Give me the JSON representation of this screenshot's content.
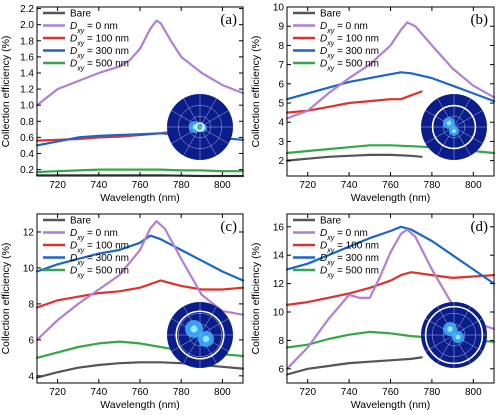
{
  "colors": {
    "Bare": "#555555",
    "D0": "#b07fd8",
    "D100": "#e0322a",
    "D300": "#1a66c9",
    "D500": "#33a844"
  },
  "legend": [
    {
      "key": "Bare",
      "text": "Bare",
      "sub": "",
      "rest": ""
    },
    {
      "key": "D0",
      "text": "D",
      "sub": "xy",
      "rest": " = 0 nm"
    },
    {
      "key": "D100",
      "text": "D",
      "sub": "xy",
      "rest": " = 100 nm"
    },
    {
      "key": "D300",
      "text": "D",
      "sub": "xy",
      "rest": " = 300 nm"
    },
    {
      "key": "D500",
      "text": "D",
      "sub": "xy",
      "rest": " = 500 nm"
    }
  ],
  "chart_data": [
    {
      "type": "line",
      "panel": "(a)",
      "xlabel": "Wavelength (nm)",
      "ylabel": "Collection efficiency (%)",
      "xlim": [
        710,
        810
      ],
      "ylim": [
        0.12,
        2.22
      ],
      "xticks": [
        720,
        740,
        760,
        780,
        800
      ],
      "yticks": [
        0.2,
        0.4,
        0.6,
        0.8,
        1.0,
        1.2,
        1.4,
        1.6,
        1.8,
        2.0,
        2.2
      ],
      "ytick_labels": [
        "0.2",
        "0.4",
        "0.6",
        "0.8",
        "1.0",
        "1.2",
        "1.4",
        "1.6",
        "1.8",
        "2.0",
        "2.2"
      ],
      "series": [
        {
          "name": "Bare",
          "x": [
            710,
            730,
            750,
            770,
            790,
            810
          ],
          "y": [
            0.13,
            0.13,
            0.13,
            0.13,
            0.12,
            0.12
          ]
        },
        {
          "name": "Dxy = 0 nm",
          "x": [
            710,
            715,
            720,
            730,
            740,
            750,
            755,
            760,
            765,
            768,
            770,
            775,
            780,
            790,
            800,
            810
          ],
          "y": [
            1.0,
            1.1,
            1.2,
            1.3,
            1.4,
            1.48,
            1.56,
            1.7,
            1.95,
            2.05,
            2.02,
            1.8,
            1.6,
            1.4,
            1.25,
            1.15
          ]
        },
        {
          "name": "Dxy = 100 nm",
          "x": [
            710,
            720,
            730,
            740,
            750,
            760,
            770,
            773
          ],
          "y": [
            0.56,
            0.57,
            0.58,
            0.6,
            0.61,
            0.63,
            0.65,
            0.66
          ]
        },
        {
          "name": "Dxy = 300 nm",
          "x": [
            710,
            720,
            730,
            740,
            750,
            760,
            770,
            780,
            790,
            800,
            810
          ],
          "y": [
            0.5,
            0.55,
            0.6,
            0.62,
            0.63,
            0.64,
            0.65,
            0.63,
            0.61,
            0.59,
            0.57
          ]
        },
        {
          "name": "Dxy = 500 nm",
          "x": [
            710,
            720,
            730,
            740,
            750,
            760,
            770,
            780,
            790,
            800,
            810
          ],
          "y": [
            0.17,
            0.18,
            0.19,
            0.2,
            0.2,
            0.2,
            0.2,
            0.19,
            0.19,
            0.18,
            0.18
          ]
        }
      ]
    },
    {
      "type": "line",
      "panel": "(b)",
      "xlabel": "Wavelength (nm)",
      "ylabel": "Collection efficiency (%)",
      "xlim": [
        710,
        810
      ],
      "ylim": [
        1.2,
        10.0
      ],
      "xticks": [
        720,
        740,
        760,
        780,
        800
      ],
      "yticks": [
        2,
        3,
        4,
        5,
        6,
        7,
        8,
        9,
        10
      ],
      "ytick_labels": [
        "2",
        "3",
        "4",
        "5",
        "6",
        "7",
        "8",
        "9",
        "10"
      ],
      "series": [
        {
          "name": "Bare",
          "x": [
            710,
            720,
            730,
            740,
            750,
            760,
            770,
            775
          ],
          "y": [
            2.0,
            2.1,
            2.2,
            2.25,
            2.3,
            2.3,
            2.25,
            2.2
          ]
        },
        {
          "name": "Dxy = 0 nm",
          "x": [
            710,
            720,
            730,
            740,
            750,
            760,
            765,
            768,
            772,
            780,
            790,
            800,
            810
          ],
          "y": [
            4.2,
            4.6,
            5.5,
            6.3,
            7.0,
            8.0,
            8.8,
            9.2,
            9.0,
            8.0,
            6.8,
            5.9,
            5.3
          ]
        },
        {
          "name": "Dxy = 100 nm",
          "x": [
            710,
            720,
            730,
            740,
            750,
            760,
            765,
            770,
            775
          ],
          "y": [
            4.5,
            4.6,
            4.8,
            5.0,
            5.1,
            5.2,
            5.2,
            5.4,
            5.6
          ]
        },
        {
          "name": "Dxy = 300 nm",
          "x": [
            710,
            720,
            730,
            740,
            750,
            760,
            765,
            770,
            780,
            790,
            800,
            810
          ],
          "y": [
            5.2,
            5.5,
            5.8,
            6.1,
            6.3,
            6.5,
            6.6,
            6.55,
            6.3,
            5.9,
            5.5,
            5.1
          ]
        },
        {
          "name": "Dxy = 500 nm",
          "x": [
            710,
            720,
            730,
            740,
            750,
            760,
            770,
            780,
            790,
            800,
            810
          ],
          "y": [
            2.4,
            2.5,
            2.6,
            2.7,
            2.8,
            2.8,
            2.75,
            2.7,
            2.6,
            2.5,
            2.4
          ]
        }
      ]
    },
    {
      "type": "line",
      "panel": "(c)",
      "xlabel": "Wavelength (nm)",
      "ylabel": "Collection efficiency (%)",
      "xlim": [
        710,
        810
      ],
      "ylim": [
        3.6,
        13.0
      ],
      "xticks": [
        720,
        740,
        760,
        780,
        800
      ],
      "yticks": [
        4,
        6,
        8,
        10,
        12
      ],
      "ytick_labels": [
        "4",
        "6",
        "8",
        "10",
        "12"
      ],
      "series": [
        {
          "name": "Bare",
          "x": [
            710,
            720,
            730,
            740,
            750,
            760,
            770,
            780,
            790,
            800,
            810
          ],
          "y": [
            3.9,
            4.2,
            4.45,
            4.6,
            4.7,
            4.75,
            4.75,
            4.7,
            4.6,
            4.5,
            4.4
          ]
        },
        {
          "name": "Dxy = 0 nm",
          "x": [
            710,
            720,
            730,
            740,
            750,
            760,
            765,
            768,
            772,
            780,
            790,
            800,
            810
          ],
          "y": [
            6.0,
            7.1,
            8.0,
            8.8,
            9.6,
            11.0,
            12.2,
            12.6,
            12.2,
            10.5,
            8.5,
            7.6,
            7.4
          ]
        },
        {
          "name": "Dxy = 100 nm",
          "x": [
            710,
            720,
            730,
            740,
            750,
            760,
            770,
            780,
            790,
            800,
            810
          ],
          "y": [
            7.8,
            8.2,
            8.4,
            8.6,
            8.7,
            8.9,
            9.3,
            9.0,
            8.8,
            8.8,
            8.9
          ]
        },
        {
          "name": "Dxy = 300 nm",
          "x": [
            710,
            720,
            730,
            740,
            750,
            760,
            765,
            770,
            780,
            790,
            800,
            810
          ],
          "y": [
            9.8,
            10.2,
            10.5,
            10.8,
            11.0,
            11.4,
            11.8,
            11.6,
            11.0,
            10.4,
            9.8,
            9.3
          ]
        },
        {
          "name": "Dxy = 500 nm",
          "x": [
            710,
            720,
            730,
            740,
            750,
            760,
            770,
            780,
            790,
            800,
            810
          ],
          "y": [
            5.0,
            5.3,
            5.6,
            5.8,
            5.9,
            5.8,
            5.6,
            5.4,
            5.3,
            5.2,
            5.1
          ]
        }
      ]
    },
    {
      "type": "line",
      "panel": "(d)",
      "xlabel": "Wavelength (nm)",
      "ylabel": "Collection efficiency (%)",
      "xlim": [
        710,
        810
      ],
      "ylim": [
        5.0,
        16.9
      ],
      "xticks": [
        720,
        740,
        760,
        780,
        800
      ],
      "yticks": [
        6,
        8,
        10,
        12,
        14,
        16
      ],
      "ytick_labels": [
        "6",
        "8",
        "10",
        "12",
        "14",
        "16"
      ],
      "series": [
        {
          "name": "Bare",
          "x": [
            710,
            720,
            730,
            740,
            750,
            760,
            770,
            775
          ],
          "y": [
            5.6,
            6.0,
            6.2,
            6.4,
            6.5,
            6.6,
            6.7,
            6.8
          ]
        },
        {
          "name": "Dxy = 0 nm",
          "x": [
            710,
            720,
            730,
            740,
            745,
            750,
            755,
            760,
            765,
            768,
            772,
            780,
            790,
            800,
            810
          ],
          "y": [
            6.0,
            7.5,
            9.5,
            11.2,
            11.0,
            11.0,
            12.5,
            14.2,
            15.5,
            15.8,
            15.3,
            13.0,
            10.5,
            9.3,
            8.8
          ]
        },
        {
          "name": "Dxy = 100 nm",
          "x": [
            710,
            720,
            730,
            740,
            750,
            760,
            765,
            770,
            780,
            790,
            800,
            810
          ],
          "y": [
            10.5,
            10.7,
            11.0,
            11.3,
            11.7,
            12.2,
            12.6,
            12.8,
            12.6,
            12.4,
            12.5,
            12.6
          ]
        },
        {
          "name": "Dxy = 300 nm",
          "x": [
            710,
            720,
            730,
            740,
            750,
            760,
            765,
            770,
            780,
            790,
            800,
            810
          ],
          "y": [
            13.0,
            13.4,
            14.0,
            14.6,
            15.2,
            15.7,
            16.0,
            15.8,
            15.0,
            14.0,
            13.0,
            12.0
          ]
        },
        {
          "name": "Dxy = 500 nm",
          "x": [
            710,
            720,
            730,
            740,
            750,
            760,
            770,
            780,
            790,
            800,
            810
          ],
          "y": [
            7.5,
            7.7,
            8.1,
            8.4,
            8.6,
            8.5,
            8.3,
            8.2,
            8.1,
            8.0,
            7.9
          ]
        }
      ]
    }
  ]
}
